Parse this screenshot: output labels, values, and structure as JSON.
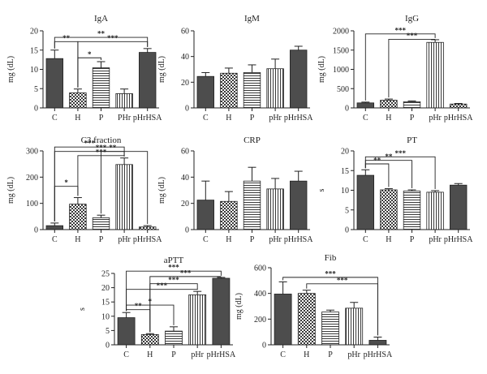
{
  "figure": {
    "category_labels_note": "",
    "colors": {
      "dark": "#4d4d4d",
      "axis": "#222222"
    }
  },
  "chart_data": [
    {
      "type": "bar",
      "title": "IgA",
      "ylabel": "mg (dL)",
      "categories": [
        "C",
        "H",
        "P",
        "PHr",
        "pHrHSA"
      ],
      "values": [
        12.8,
        3.9,
        10.4,
        3.7,
        14.4
      ],
      "errors": [
        2.2,
        1.0,
        1.6,
        1.2,
        1.0
      ],
      "fills": [
        "dark",
        "check",
        "hlines",
        "vlines",
        "dark"
      ],
      "ylim": [
        0,
        20
      ],
      "yticks": [
        0,
        5,
        10,
        15,
        20
      ],
      "sig": [
        {
          "from": 0,
          "to": 1,
          "label": "**",
          "y": 17.2
        },
        {
          "from": 0,
          "to": 4,
          "label": "**",
          "y": 18.3
        },
        {
          "from": 1,
          "to": 2,
          "label": "*",
          "y": 13.0
        },
        {
          "from": 1,
          "to": 4,
          "label": "***",
          "y": 17.2
        }
      ]
    },
    {
      "type": "bar",
      "title": "IgM",
      "ylabel": "mg (dL)",
      "categories": [
        "C",
        "H",
        "P",
        "pHr",
        "pHrHSA"
      ],
      "values": [
        24.5,
        27,
        27.5,
        30.5,
        45
      ],
      "errors": [
        3,
        4,
        6,
        7.5,
        3
      ],
      "fills": [
        "dark",
        "check",
        "hlines",
        "vlines",
        "dark"
      ],
      "ylim": [
        0,
        60
      ],
      "yticks": [
        0,
        20,
        40,
        60
      ],
      "sig": []
    },
    {
      "type": "bar",
      "title": "IgG",
      "ylabel": "mg (dL)",
      "categories": [
        "C",
        "H",
        "P",
        "pHr",
        "pHrHSA"
      ],
      "values": [
        130,
        200,
        160,
        1700,
        100
      ],
      "errors": [
        20,
        30,
        20,
        70,
        15
      ],
      "fills": [
        "dark",
        "check",
        "hlines",
        "vlines",
        "check"
      ],
      "ylim": [
        0,
        2000
      ],
      "yticks": [
        0,
        500,
        1000,
        1500,
        2000
      ],
      "sig": [
        {
          "from": 0,
          "to": 3,
          "label": "***",
          "y": 1920
        },
        {
          "from": 1,
          "to": 3,
          "label": "***",
          "y": 1780
        }
      ]
    },
    {
      "type": "bar",
      "title": "C3 fraction",
      "ylabel": "mg (dL)",
      "categories": [
        "C",
        "H",
        "P",
        "pHr",
        "pHrHSA"
      ],
      "values": [
        15,
        97,
        45,
        248,
        10
      ],
      "errors": [
        10,
        25,
        10,
        25,
        5
      ],
      "fills": [
        "dark",
        "check",
        "hlines",
        "vlines",
        "check"
      ],
      "ylim": [
        0,
        300
      ],
      "yticks": [
        0,
        100,
        200,
        300
      ],
      "sig": [
        {
          "from": 0,
          "to": 1,
          "label": "*",
          "y": 165
        },
        {
          "from": 0,
          "to": 3,
          "label": "***",
          "y": 315
        },
        {
          "from": 0,
          "to": 4,
          "label": "***",
          "y": 298
        },
        {
          "from": 1,
          "to": 3,
          "label": "***",
          "y": 282
        },
        {
          "from": 2,
          "to": 3,
          "label": "**",
          "y": 298
        }
      ]
    },
    {
      "type": "bar",
      "title": "CRP",
      "ylabel": "mg (dL)",
      "categories": [
        "C",
        "H",
        "P",
        "pHr",
        "pHrHSA"
      ],
      "values": [
        22.5,
        21.5,
        37,
        31,
        37
      ],
      "errors": [
        14.5,
        7.5,
        10.5,
        8,
        7.5
      ],
      "fills": [
        "dark",
        "check",
        "hlines",
        "vlines",
        "dark"
      ],
      "ylim": [
        0,
        60
      ],
      "yticks": [
        0,
        20,
        40,
        60
      ],
      "sig": []
    },
    {
      "type": "bar",
      "title": "PT",
      "ylabel": "s",
      "categories": [
        "C",
        "H",
        "P",
        "pHr",
        "pHrHSA"
      ],
      "values": [
        13.8,
        10.1,
        9.8,
        9.5,
        11.3
      ],
      "errors": [
        1.4,
        0.3,
        0.3,
        0.4,
        0.4
      ],
      "fills": [
        "dark",
        "check",
        "hlines",
        "vlines",
        "dark"
      ],
      "ylim": [
        0,
        20
      ],
      "yticks": [
        0,
        5,
        10,
        15,
        20
      ],
      "sig": [
        {
          "from": 0,
          "to": 1,
          "label": "**",
          "y": 16.7
        },
        {
          "from": 0,
          "to": 2,
          "label": "**",
          "y": 17.6
        },
        {
          "from": 0,
          "to": 3,
          "label": "***",
          "y": 18.5
        }
      ]
    },
    {
      "type": "bar",
      "title": "aPTT",
      "ylabel": "s",
      "categories": [
        "C",
        "H",
        "P",
        "pHr",
        "pHrHSA"
      ],
      "values": [
        9.5,
        3.6,
        4.8,
        17.5,
        23.3
      ],
      "errors": [
        1.8,
        0.3,
        1.5,
        1.2,
        0.3
      ],
      "fills": [
        "dark",
        "check",
        "hlines",
        "vlines",
        "dark"
      ],
      "ylim": [
        0,
        25
      ],
      "yticks": [
        0,
        5,
        10,
        15,
        20,
        25
      ],
      "sig": [
        {
          "from": 0,
          "to": 1,
          "label": "**",
          "y": 12.3
        },
        {
          "from": 0,
          "to": 2,
          "label": "*",
          "y": 13.9
        },
        {
          "from": 0,
          "to": 3,
          "label": "***",
          "y": 19.4
        },
        {
          "from": 0,
          "to": 4,
          "label": "***",
          "y": 25.8
        },
        {
          "from": 1,
          "to": 3,
          "label": "***",
          "y": 21.4
        },
        {
          "from": 1,
          "to": 4,
          "label": "***",
          "y": 23.9
        }
      ]
    },
    {
      "type": "bar",
      "title": "Fib",
      "ylabel": "mg (dL)",
      "categories": [
        "C",
        "H",
        "P",
        "pHr",
        "pHrHSA"
      ],
      "values": [
        395,
        400,
        255,
        285,
        35
      ],
      "errors": [
        95,
        25,
        15,
        45,
        25
      ],
      "fills": [
        "dark",
        "check",
        "hlines",
        "vlines",
        "dark"
      ],
      "ylim": [
        0,
        600
      ],
      "yticks": [
        0,
        200,
        400,
        600
      ],
      "sig": [
        {
          "from": 0,
          "to": 4,
          "label": "***",
          "y": 525
        },
        {
          "from": 1,
          "to": 4,
          "label": "***",
          "y": 475
        }
      ]
    }
  ]
}
